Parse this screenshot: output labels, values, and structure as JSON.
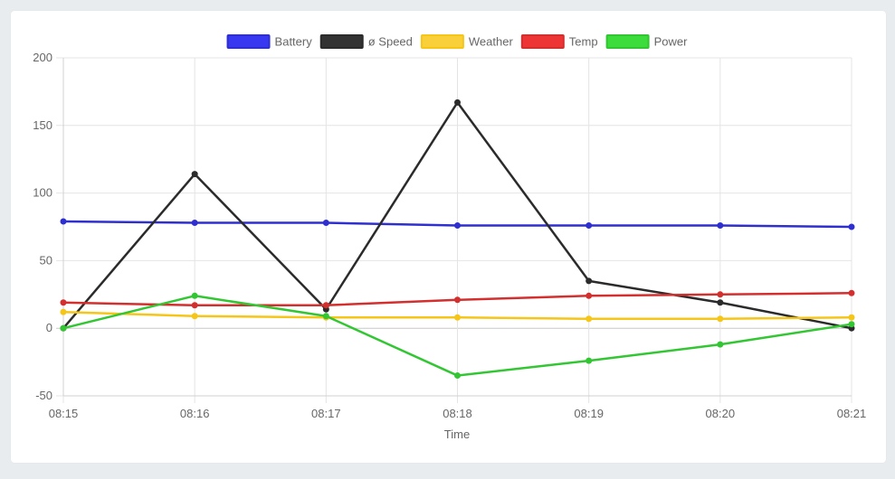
{
  "chart_data": {
    "type": "line",
    "xlabel": "Time",
    "ylabel": "",
    "ylim": [
      -50,
      200
    ],
    "y_ticks": [
      -50,
      0,
      50,
      100,
      150,
      200
    ],
    "categories": [
      "08:15",
      "08:16",
      "08:17",
      "08:18",
      "08:19",
      "08:20",
      "08:21"
    ],
    "grid": true,
    "legend": "top-center",
    "series": [
      {
        "name": "Battery",
        "color": "#2f2fd0",
        "fill": "#3838f0",
        "values": [
          79,
          78,
          78,
          76,
          76,
          76,
          75
        ]
      },
      {
        "name": "ø Speed",
        "color": "#2b2b2b",
        "fill": "#333333",
        "values": [
          0,
          114,
          14,
          167,
          35,
          19,
          0
        ]
      },
      {
        "name": "Weather",
        "color": "#f5c518",
        "fill": "#f9d03a",
        "values": [
          12,
          9,
          8,
          8,
          7,
          7,
          8
        ]
      },
      {
        "name": "Temp",
        "color": "#d32f2f",
        "fill": "#ee3535",
        "values": [
          19,
          17,
          17,
          21,
          24,
          25,
          26
        ]
      },
      {
        "name": "Power",
        "color": "#33c633",
        "fill": "#3ddc3d",
        "values": [
          0,
          24,
          9,
          -35,
          -24,
          -12,
          3
        ]
      }
    ]
  }
}
